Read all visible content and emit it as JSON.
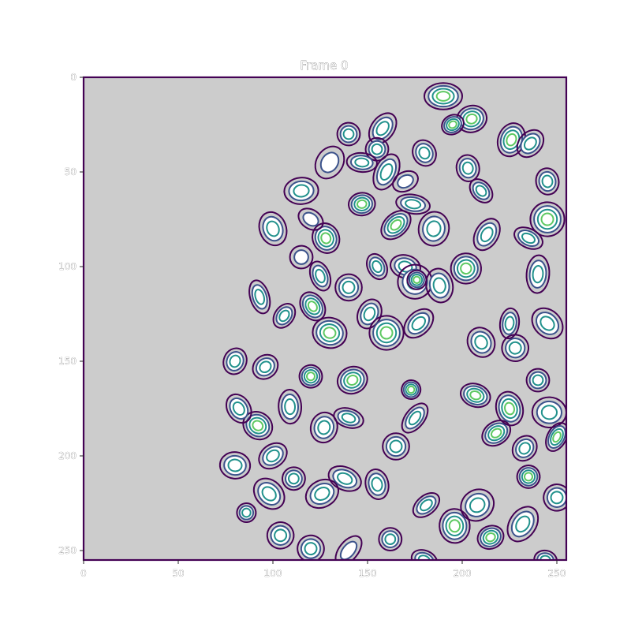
{
  "chart_data": {
    "type": "contour",
    "title": "Frame 0",
    "xlabel": "",
    "ylabel": "",
    "xlim": [
      0,
      255
    ],
    "ylim": [
      255,
      0
    ],
    "x_ticks": [
      0,
      50,
      100,
      150,
      200,
      250
    ],
    "y_ticks": [
      0,
      50,
      100,
      150,
      200,
      250
    ],
    "x_tick_labels": [
      "0",
      "50",
      "100",
      "150",
      "200",
      "250"
    ],
    "y_tick_labels": [
      "0",
      "50",
      "100",
      "150",
      "200",
      "250"
    ],
    "grid": false,
    "background_color": "#cccccc",
    "colormap": "viridis",
    "level_colors": [
      "#440154",
      "#3b528b",
      "#21918c",
      "#5ec962",
      "#fde725"
    ],
    "blobs": [
      [
        190,
        10,
        10,
        7,
        4
      ],
      [
        158,
        27,
        6,
        9,
        3
      ],
      [
        205,
        22,
        7,
        8,
        4
      ],
      [
        226,
        33,
        9,
        7,
        4
      ],
      [
        155,
        38,
        6,
        6,
        3
      ],
      [
        147,
        45,
        8,
        5,
        3
      ],
      [
        236,
        35,
        6,
        8,
        3
      ],
      [
        203,
        48,
        7,
        6,
        3
      ],
      [
        160,
        50,
        10,
        6,
        3
      ],
      [
        170,
        55,
        7,
        5,
        2
      ],
      [
        174,
        67,
        9,
        5,
        3
      ],
      [
        165,
        78,
        6,
        9,
        4
      ],
      [
        147,
        67,
        6,
        7,
        4
      ],
      [
        213,
        83,
        9,
        6,
        3
      ],
      [
        128,
        85,
        7,
        8,
        4
      ],
      [
        170,
        100,
        8,
        6,
        3
      ],
      [
        175,
        108,
        9,
        9,
        3
      ],
      [
        140,
        111,
        7,
        7,
        3
      ],
      [
        106,
        126,
        7,
        5,
        3
      ],
      [
        93,
        116,
        5,
        9,
        3
      ],
      [
        176,
        107,
        5,
        5,
        4
      ],
      [
        121,
        121,
        8,
        6,
        4
      ],
      [
        240,
        104,
        10,
        6,
        3
      ],
      [
        202,
        101,
        8,
        8,
        4
      ],
      [
        188,
        110,
        7,
        9,
        3
      ],
      [
        151,
        125,
        6,
        8,
        3
      ],
      [
        210,
        140,
        8,
        7,
        3
      ],
      [
        228,
        143,
        7,
        7,
        3
      ],
      [
        177,
        130,
        9,
        6,
        3
      ],
      [
        160,
        135,
        9,
        9,
        4
      ],
      [
        120,
        158,
        6,
        6,
        4
      ],
      [
        142,
        160,
        7,
        8,
        4
      ],
      [
        127,
        185,
        8,
        7,
        3
      ],
      [
        96,
        153,
        7,
        6,
        3
      ],
      [
        109,
        174,
        6,
        9,
        3
      ],
      [
        92,
        184,
        8,
        7,
        4
      ],
      [
        173,
        165,
        5,
        5,
        4
      ],
      [
        207,
        168,
        6,
        8,
        4
      ],
      [
        218,
        188,
        8,
        6,
        4
      ],
      [
        246,
        177,
        9,
        8,
        3
      ],
      [
        233,
        196,
        6,
        7,
        3
      ],
      [
        155,
        215,
        8,
        6,
        3
      ],
      [
        138,
        212,
        6,
        9,
        3
      ],
      [
        126,
        220,
        9,
        7,
        3
      ],
      [
        111,
        212,
        6,
        6,
        3
      ],
      [
        98,
        220,
        9,
        7,
        3
      ],
      [
        86,
        230,
        5,
        5,
        3
      ],
      [
        104,
        242,
        7,
        7,
        3
      ],
      [
        215,
        243,
        7,
        6,
        4
      ],
      [
        244,
        255,
        6,
        5,
        3
      ],
      [
        181,
        226,
        5,
        8,
        3
      ],
      [
        196,
        237,
        9,
        8,
        4
      ],
      [
        232,
        236,
        10,
        7,
        3
      ],
      [
        235,
        211,
        6,
        6,
        4
      ],
      [
        250,
        222,
        7,
        7,
        3
      ],
      [
        208,
        226,
        8,
        9,
        3
      ],
      [
        162,
        244,
        6,
        6,
        3
      ],
      [
        140,
        250,
        9,
        5,
        2
      ],
      [
        120,
        249,
        7,
        7,
        3
      ],
      [
        180,
        255,
        7,
        5,
        3
      ],
      [
        195,
        25,
        5,
        6,
        4
      ],
      [
        225,
        130,
        8,
        5,
        3
      ],
      [
        245,
        130,
        7,
        9,
        3
      ],
      [
        240,
        160,
        6,
        6,
        3
      ],
      [
        250,
        190,
        5,
        8,
        4
      ],
      [
        155,
        100,
        7,
        5,
        3
      ],
      [
        130,
        135,
        8,
        9,
        4
      ],
      [
        115,
        95,
        6,
        6,
        2
      ],
      [
        115,
        60,
        9,
        7,
        3
      ],
      [
        120,
        75,
        7,
        5,
        2
      ],
      [
        100,
        80,
        9,
        7,
        3
      ],
      [
        140,
        180,
        5,
        8,
        3
      ],
      [
        100,
        200,
        8,
        6,
        3
      ],
      [
        165,
        195,
        7,
        7,
        3
      ],
      [
        175,
        180,
        5,
        9,
        3
      ],
      [
        225,
        175,
        9,
        7,
        4
      ],
      [
        80,
        150,
        7,
        6,
        3
      ],
      [
        82,
        175,
        6,
        8,
        3
      ],
      [
        80,
        205,
        8,
        7,
        3
      ],
      [
        245,
        75,
        9,
        9,
        4
      ],
      [
        245,
        55,
        7,
        6,
        3
      ],
      [
        235,
        85,
        5,
        8,
        3
      ],
      [
        180,
        40,
        6,
        7,
        3
      ],
      [
        185,
        80,
        8,
        9,
        3
      ],
      [
        210,
        60,
        7,
        5,
        3
      ],
      [
        140,
        30,
        6,
        6,
        3
      ],
      [
        130,
        45,
        9,
        7,
        2
      ],
      [
        125,
        105,
        5,
        8,
        3
      ]
    ]
  }
}
